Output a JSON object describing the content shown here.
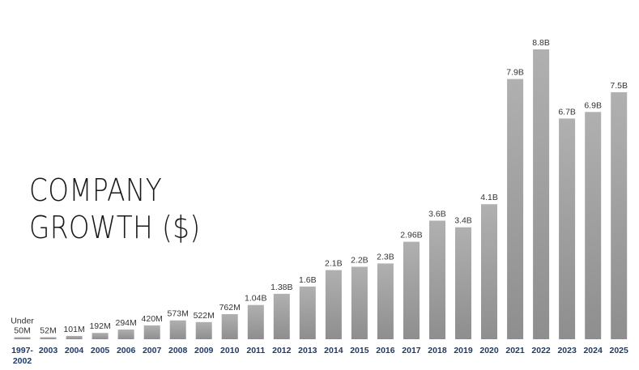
{
  "title_line1": "COMPANY",
  "title_line2": "GROWTH ($)",
  "chart_data": {
    "type": "bar",
    "title": "COMPANY GROWTH ($)",
    "xlabel": "",
    "ylabel": "",
    "categories": [
      "1997-2002",
      "2003",
      "2004",
      "2005",
      "2006",
      "2007",
      "2008",
      "2009",
      "2010",
      "2011",
      "2012",
      "2013",
      "2014",
      "2015",
      "2016",
      "2017",
      "2018",
      "2019",
      "2020",
      "2021",
      "2022",
      "2023",
      "2024",
      "2025"
    ],
    "values": [
      0.05,
      0.052,
      0.101,
      0.192,
      0.294,
      0.42,
      0.573,
      0.522,
      0.762,
      1.04,
      1.38,
      1.6,
      2.1,
      2.2,
      2.3,
      2.96,
      3.6,
      3.4,
      4.1,
      7.9,
      8.8,
      6.7,
      6.9,
      7.5
    ],
    "value_labels": [
      "Under 50M",
      "52M",
      "101M",
      "192M",
      "294M",
      "420M",
      "573M",
      "522M",
      "762M",
      "1.04B",
      "1.38B",
      "1.6B",
      "2.1B",
      "2.2B",
      "2.3B",
      "2.96B",
      "3.6B",
      "3.4B",
      "4.1B",
      "7.9B",
      "8.8B",
      "6.7B",
      "6.9B",
      "7.5B"
    ],
    "ylim": [
      0,
      8.8
    ],
    "grid": false,
    "bar_color": "#a3a3a3",
    "label_color": "#333333",
    "category_color": "#1f3a66"
  }
}
